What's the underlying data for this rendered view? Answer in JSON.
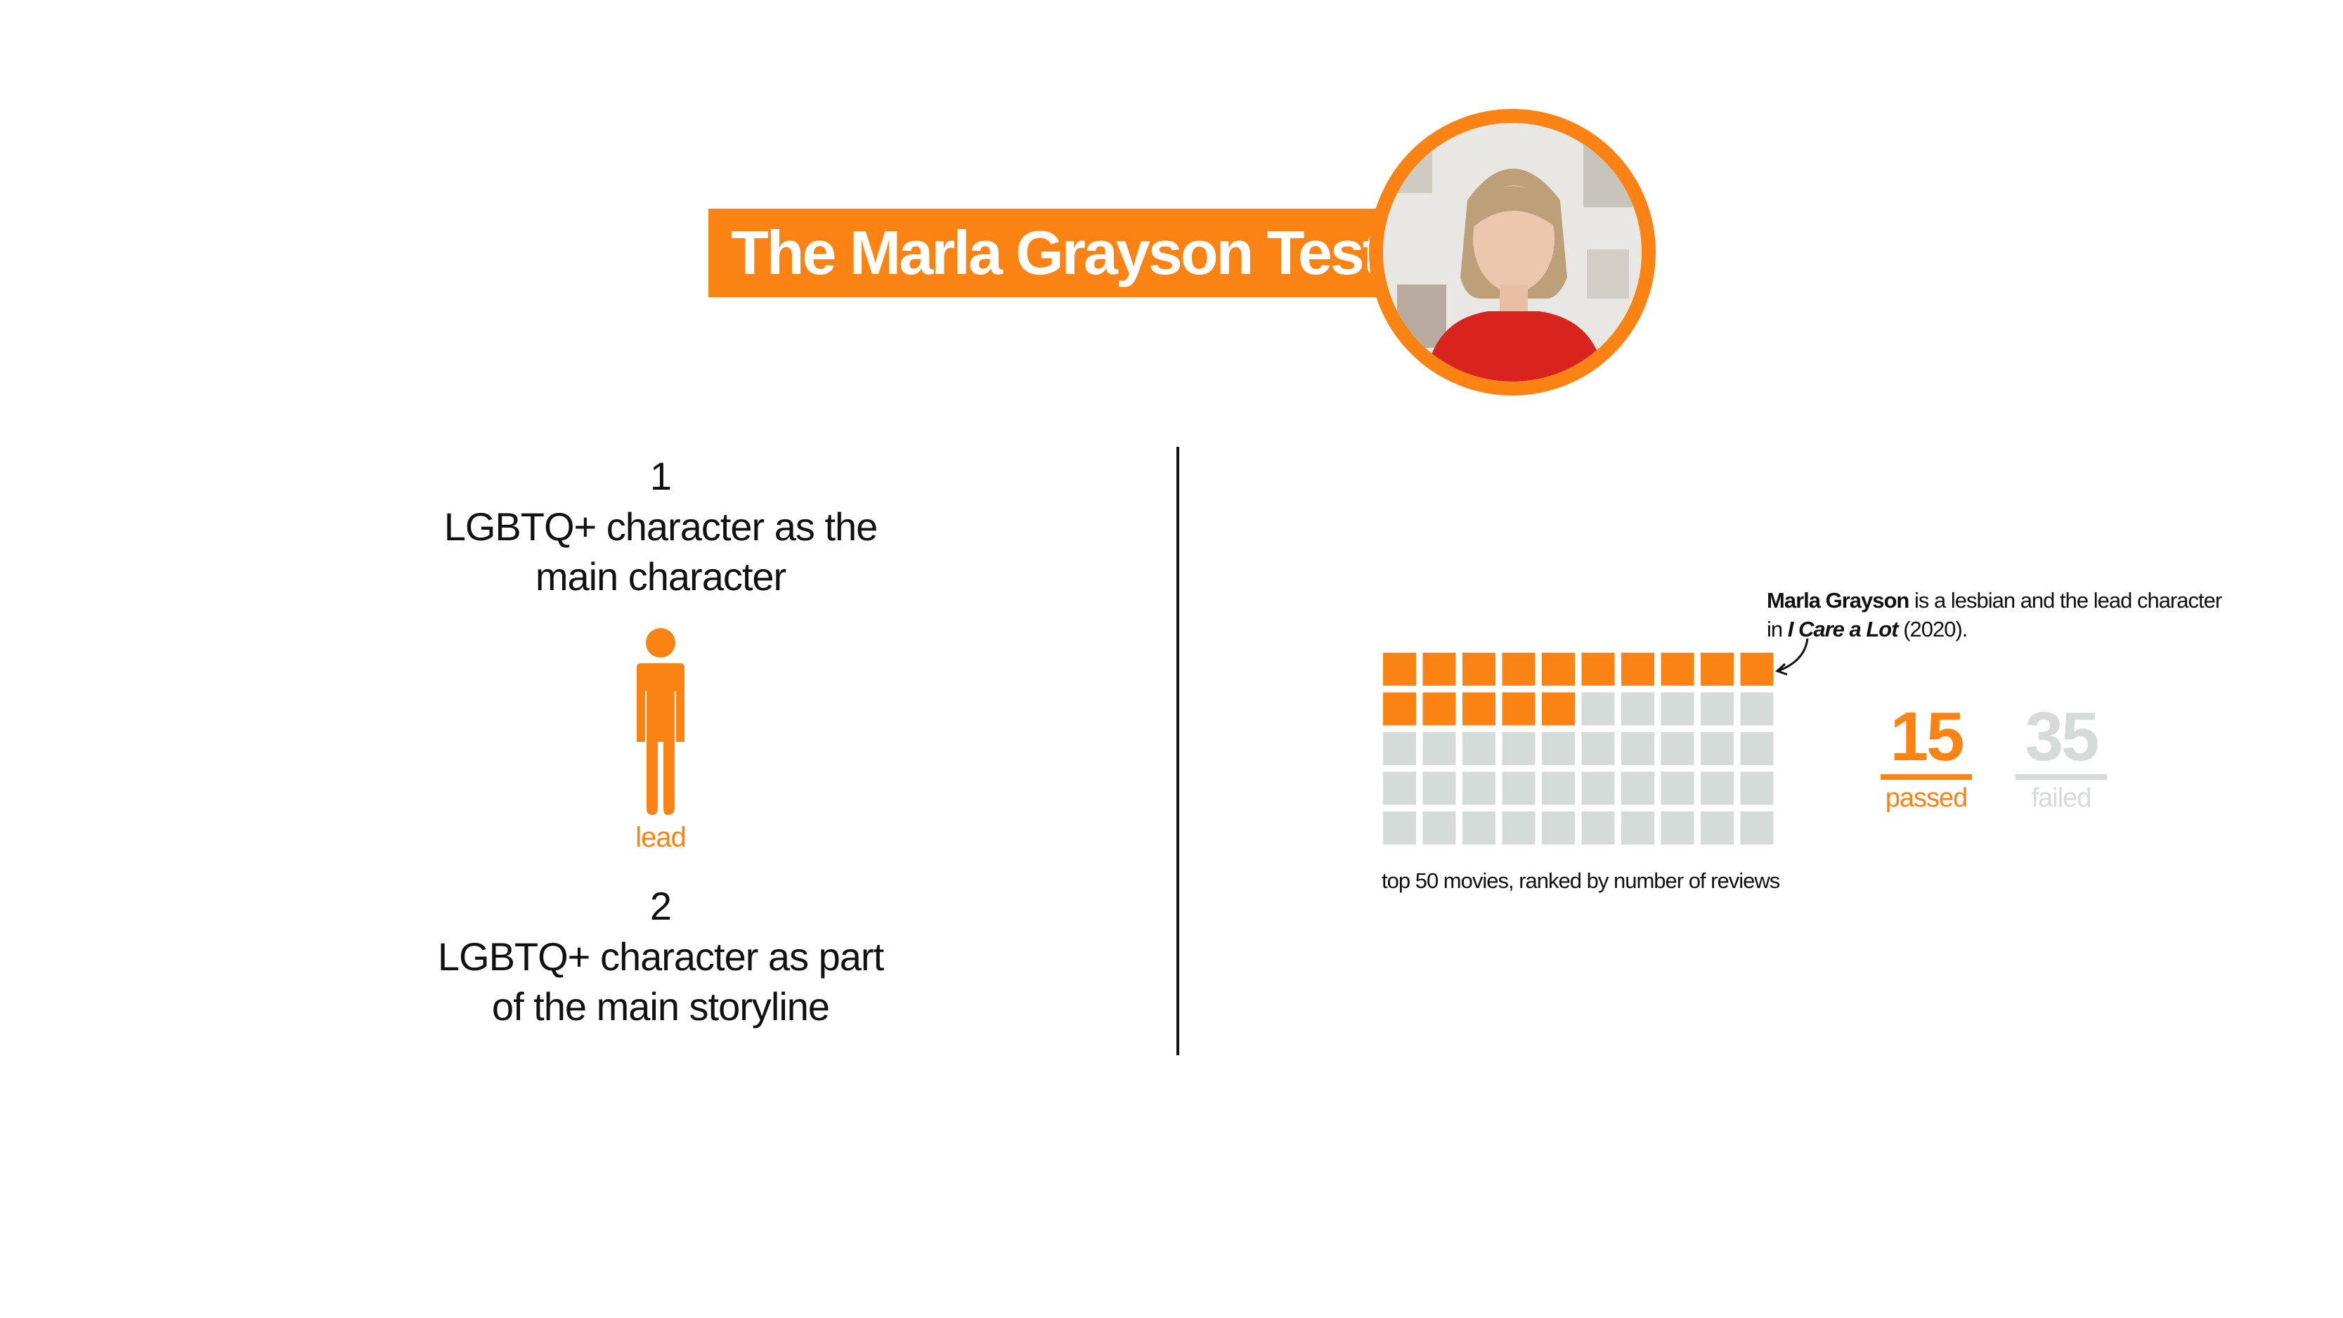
{
  "colors": {
    "accent": "#fb8314",
    "muted": "#d5dbd9",
    "text": "#111111"
  },
  "header": {
    "title": "The Marla Grayson Test"
  },
  "rules": [
    {
      "number": "1",
      "lines": [
        "LGBTQ+ character as the",
        "main character"
      ]
    },
    {
      "number": "2",
      "lines": [
        "LGBTQ+ character as part",
        "of the main storyline"
      ]
    }
  ],
  "figure": {
    "icon": "person-icon",
    "label": "lead"
  },
  "annotation": {
    "name": "Marla Grayson",
    "text_mid": " is a lesbian and the lead character",
    "text_prefix": "in ",
    "film": "I Care a Lot",
    "year": " (2020)."
  },
  "chart_data": {
    "type": "waffle",
    "columns": 10,
    "rows": 5,
    "total": 50,
    "passed": 15,
    "failed": 35,
    "caption": "top 50 movies, ranked by number of reviews"
  },
  "counts": {
    "passed_value": "15",
    "passed_label": "passed",
    "failed_value": "35",
    "failed_label": "failed"
  }
}
